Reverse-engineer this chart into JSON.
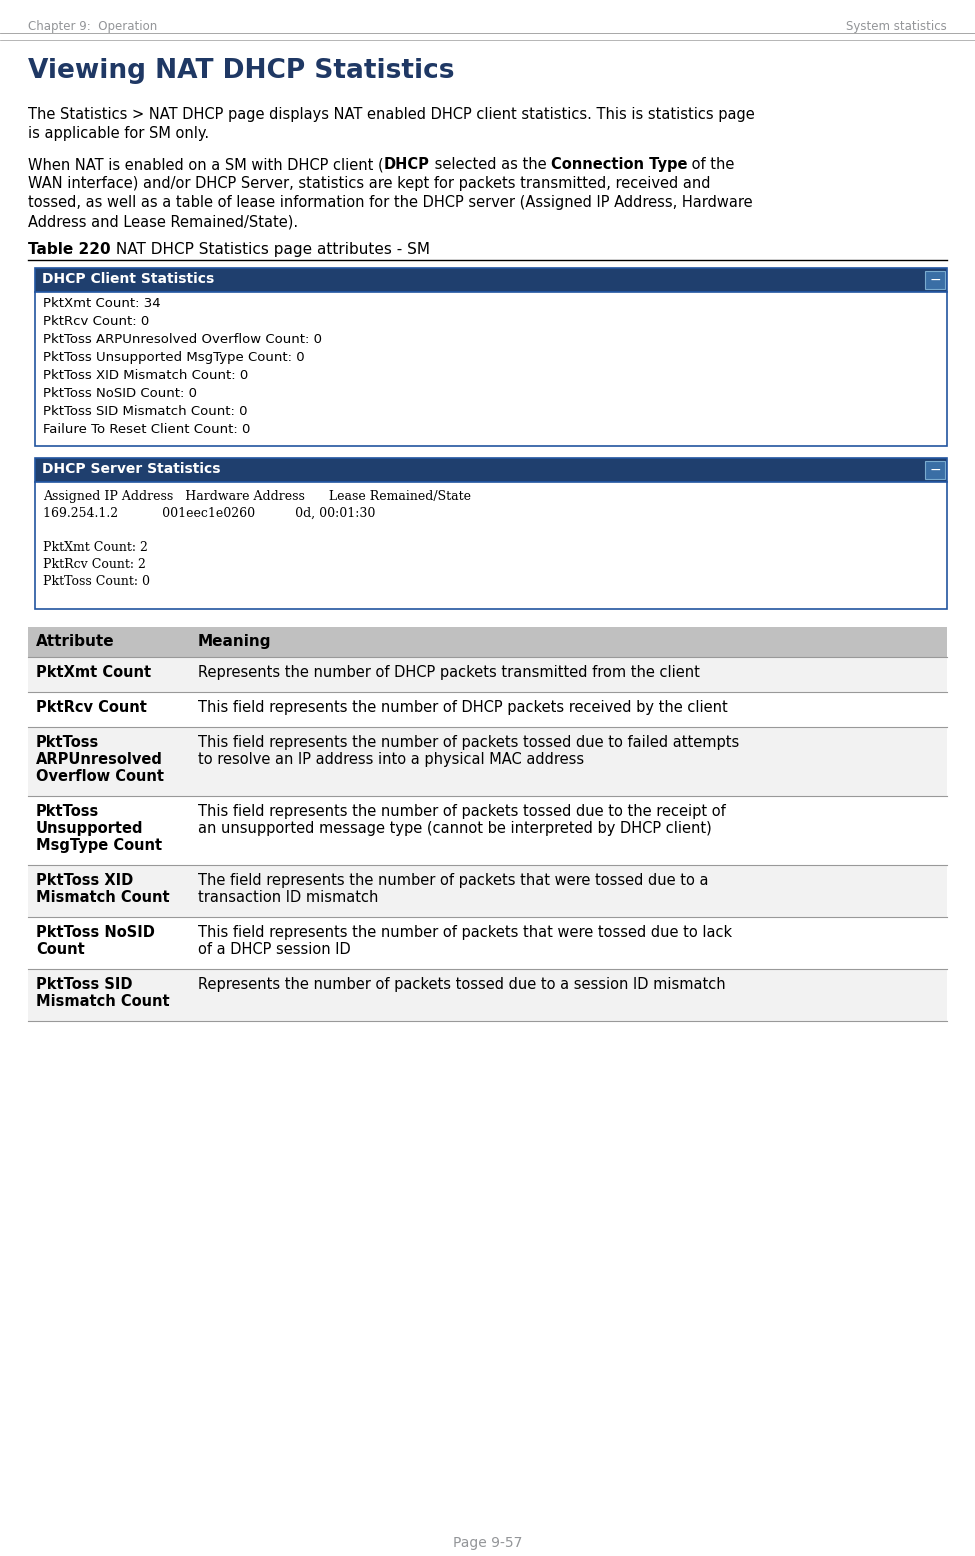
{
  "header_left": "Chapter 9:  Operation",
  "header_right": "System statistics",
  "title": "Viewing NAT DHCP Statistics",
  "para1_line1": "The Statistics > NAT DHCP page displays NAT enabled DHCP client statistics. This is statistics page",
  "para1_line2": "is applicable for SM only.",
  "para2_line1_pre": "When NAT is enabled on a SM with DHCP client (",
  "para2_line1_bold1": "DHCP",
  "para2_line1_mid": " selected as the ",
  "para2_line1_bold2": "Connection Type",
  "para2_line1_post": " of the",
  "para2_line2": "WAN interface) and/or DHCP Server, statistics are kept for packets transmitted, received and",
  "para2_line3": "tossed, as well as a table of lease information for the DHCP server (Assigned IP Address, Hardware",
  "para2_line4": "Address and Lease Remained/State).",
  "table_label_bold": "Table 220",
  "table_label_rest": " NAT DHCP Statistics page attributes - SM",
  "dhcp_client_title": "DHCP Client Statistics",
  "dhcp_client_lines": [
    "PktXmt Count: 34",
    "PktRcv Count: 0",
    "PktToss ARPUnresolved Overflow Count: 0",
    "PktToss Unsupported MsgType Count: 0",
    "PktToss XID Mismatch Count: 0",
    "PktToss NoSID Count: 0",
    "PktToss SID Mismatch Count: 0",
    "Failure To Reset Client Count: 0"
  ],
  "dhcp_server_title": "DHCP Server Statistics",
  "dhcp_server_lines": [
    "Assigned IP Address   Hardware Address      Lease Remained/State",
    "169.254.1.2           001eec1e0260          0d, 00:01:30",
    "",
    "PktXmt Count: 2",
    "PktRcv Count: 2",
    "PktToss Count: 0"
  ],
  "table_header": [
    "Attribute",
    "Meaning"
  ],
  "table_rows": [
    {
      "attr": [
        "PktXmt Count"
      ],
      "meaning": [
        "Represents the number of DHCP packets transmitted from the client"
      ]
    },
    {
      "attr": [
        "PktRcv Count"
      ],
      "meaning": [
        "This field represents the number of DHCP packets received by the client"
      ]
    },
    {
      "attr": [
        "PktToss",
        "ARPUnresolved",
        "Overflow Count"
      ],
      "meaning": [
        "This field represents the number of packets tossed due to failed attempts",
        "to resolve an IP address into a physical MAC address"
      ]
    },
    {
      "attr": [
        "PktToss",
        "Unsupported",
        "MsgType Count"
      ],
      "meaning": [
        "This field represents the number of packets tossed due to the receipt of",
        "an unsupported message type (cannot be interpreted by DHCP client)"
      ]
    },
    {
      "attr": [
        "PktToss XID",
        "Mismatch Count"
      ],
      "meaning": [
        "The field represents the number of packets that were tossed due to a",
        "transaction ID mismatch"
      ]
    },
    {
      "attr": [
        "PktToss NoSID",
        "Count"
      ],
      "meaning": [
        "This field represents the number of packets that were tossed due to lack",
        "of a DHCP session ID"
      ]
    },
    {
      "attr": [
        "PktToss SID",
        "Mismatch Count"
      ],
      "meaning": [
        "Represents the number of packets tossed due to a session ID mismatch"
      ]
    }
  ],
  "footer_text": "Page 9-57",
  "header_color": "#939598",
  "title_color": "#1F3864",
  "body_text_color": "#000000",
  "table_header_bg": "#C0C0C0",
  "table_row_white_bg": "#FFFFFF",
  "table_row_gray_bg": "#F2F2F2",
  "box_header_bg": "#1F3F6E",
  "box_header_text": "#FFFFFF",
  "box_border_color": "#2255A0",
  "box_bg": "#FFFFFF",
  "footer_color": "#939598",
  "divider_color": "#999999"
}
